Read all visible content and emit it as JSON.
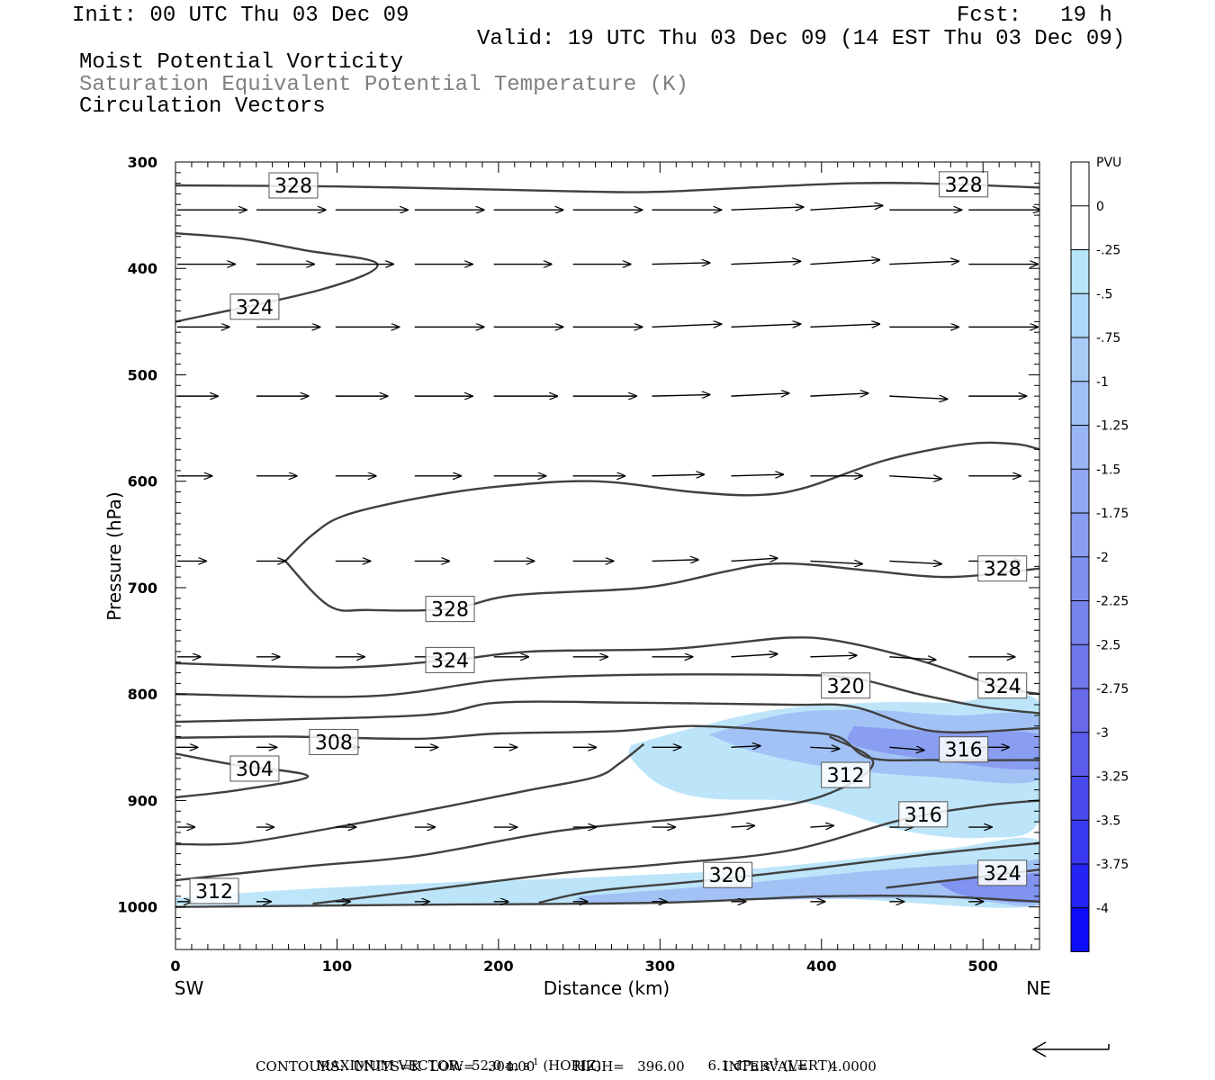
{
  "header": {
    "init": "Init: 00 UTC Thu 03 Dec 09",
    "fcst": "Fcst:   19 h",
    "valid": "Valid: 19 UTC Thu 03 Dec 09 (14 EST Thu 03 Dec 09)",
    "field1": "Moist Potential Vorticity",
    "field2": "Saturation Equivalent Potential Temperature (K)",
    "field3": "Circulation Vectors"
  },
  "footer": {
    "max_vector_label": "MAXIMUM VECTOR:",
    "max_horiz": "52.0 m s",
    "horiz_tag": "(HORIZ)",
    "max_vert": "6.1 dPa s",
    "vert_tag": "(VERT)",
    "exp": "-1",
    "contours": "CONTOURS:  UNITS=K  LOW=   304.00         HIGH=   396.00         INTERVAL=     4.0000"
  },
  "colors": {
    "contour": "#404040",
    "vector": "#000000",
    "pv_light": "#b4e4fa",
    "pv_dark": "#0000ff"
  },
  "chart_data": {
    "type": "contour",
    "title": "",
    "xlabel": "Distance (km)",
    "ylabel": "Pressure (hPa)",
    "xlim": [
      0,
      535
    ],
    "ylim": [
      1040,
      300
    ],
    "xticks": [
      0,
      100,
      200,
      300,
      400,
      500
    ],
    "yticks": [
      300,
      400,
      500,
      600,
      700,
      800,
      900,
      1000
    ],
    "x_endpoints": {
      "left": "SW",
      "right": "NE"
    },
    "colorbar": {
      "unit": "PVU",
      "labels": [
        "0",
        "-.25",
        "-.5",
        "-.75",
        "-1",
        "-1.25",
        "-1.5",
        "-1.75",
        "-2",
        "-2.25",
        "-2.5",
        "-2.75",
        "-3",
        "-3.25",
        "-3.5",
        "-3.75",
        "-4"
      ],
      "colors": [
        "#ffffff",
        "#ffffff",
        "#b8e4f9",
        "#b0d8f8",
        "#a8ccf6",
        "#a0c0f5",
        "#98b4f3",
        "#90a8f2",
        "#889cf0",
        "#8090ef",
        "#7884ed",
        "#7078ec",
        "#686ae9",
        "#5c5ceb",
        "#4a4aee",
        "#3838f1",
        "#2424f5",
        "#0c0cfa"
      ]
    },
    "contour_labels": [
      {
        "value": "328",
        "x": 73,
        "p": 322
      },
      {
        "value": "328",
        "x": 488,
        "p": 321
      },
      {
        "value": "324",
        "x": 49,
        "p": 436
      },
      {
        "value": "328",
        "x": 170,
        "p": 720
      },
      {
        "value": "328",
        "x": 512,
        "p": 682
      },
      {
        "value": "324",
        "x": 170,
        "p": 768
      },
      {
        "value": "320",
        "x": 415,
        "p": 792
      },
      {
        "value": "324",
        "x": 512,
        "p": 792
      },
      {
        "value": "308",
        "x": 98,
        "p": 845
      },
      {
        "value": "304",
        "x": 49,
        "p": 870
      },
      {
        "value": "312",
        "x": 415,
        "p": 876
      },
      {
        "value": "316",
        "x": 488,
        "p": 852
      },
      {
        "value": "316",
        "x": 463,
        "p": 913
      },
      {
        "value": "312",
        "x": 24,
        "p": 985
      },
      {
        "value": "320",
        "x": 342,
        "p": 970
      },
      {
        "value": "324",
        "x": 512,
        "p": 968
      }
    ],
    "contours": [
      {
        "value": 328,
        "points": [
          [
            0,
            322
          ],
          [
            100,
            323
          ],
          [
            200,
            326
          ],
          [
            260,
            328
          ],
          [
            300,
            328
          ],
          [
            370,
            323
          ],
          [
            420,
            320
          ],
          [
            460,
            320
          ],
          [
            535,
            324
          ]
        ]
      },
      {
        "value": 324,
        "points": [
          [
            0,
            367
          ],
          [
            40,
            372
          ],
          [
            80,
            383
          ],
          [
            125,
            396
          ],
          [
            90,
            420
          ],
          [
            0,
            450
          ]
        ]
      },
      {
        "value": 328,
        "points": [
          [
            68,
            675
          ],
          [
            85,
            650
          ],
          [
            105,
            632
          ],
          [
            150,
            616
          ],
          [
            200,
            605
          ],
          [
            260,
            600
          ],
          [
            320,
            610
          ],
          [
            360,
            613
          ],
          [
            390,
            606
          ],
          [
            440,
            580
          ],
          [
            490,
            565
          ],
          [
            520,
            565
          ],
          [
            535,
            570
          ]
        ]
      },
      {
        "value": 328,
        "points": [
          [
            68,
            675
          ],
          [
            95,
            717
          ],
          [
            120,
            721
          ],
          [
            170,
            720
          ],
          [
            210,
            707
          ],
          [
            290,
            700
          ],
          [
            340,
            685
          ],
          [
            365,
            678
          ],
          [
            390,
            678
          ],
          [
            430,
            684
          ],
          [
            480,
            690
          ],
          [
            535,
            682
          ]
        ]
      },
      {
        "value": 324,
        "points": [
          [
            0,
            771
          ],
          [
            100,
            775
          ],
          [
            170,
            768
          ],
          [
            220,
            760
          ],
          [
            300,
            758
          ],
          [
            340,
            753
          ],
          [
            380,
            747
          ],
          [
            410,
            750
          ],
          [
            460,
            768
          ],
          [
            510,
            793
          ],
          [
            535,
            800
          ]
        ]
      },
      {
        "value": 320,
        "points": [
          [
            0,
            800
          ],
          [
            120,
            802
          ],
          [
            200,
            787
          ],
          [
            280,
            782
          ],
          [
            380,
            782
          ],
          [
            420,
            785
          ],
          [
            460,
            800
          ],
          [
            500,
            812
          ],
          [
            535,
            818
          ]
        ]
      },
      {
        "value": 316,
        "points": [
          [
            0,
            826
          ],
          [
            150,
            820
          ],
          [
            200,
            808
          ],
          [
            280,
            808
          ],
          [
            380,
            810
          ],
          [
            420,
            812
          ],
          [
            470,
            835
          ],
          [
            535,
            832
          ]
        ]
      },
      {
        "value": 312,
        "points": [
          [
            0,
            841
          ],
          [
            70,
            840
          ],
          [
            150,
            842
          ],
          [
            200,
            837
          ],
          [
            270,
            835
          ],
          [
            320,
            830
          ],
          [
            380,
            835
          ],
          [
            410,
            840
          ],
          [
            430,
            860
          ],
          [
            470,
            862
          ],
          [
            535,
            862
          ]
        ]
      },
      {
        "value": 304,
        "points": [
          [
            0,
            856
          ],
          [
            35,
            866
          ],
          [
            82,
            877
          ],
          [
            40,
            890
          ],
          [
            0,
            897
          ]
        ]
      },
      {
        "value": 308,
        "points": [
          [
            0,
            941
          ],
          [
            40,
            940
          ],
          [
            100,
            925
          ],
          [
            170,
            905
          ],
          [
            220,
            890
          ],
          [
            260,
            878
          ],
          [
            275,
            865
          ],
          [
            290,
            847
          ]
        ]
      },
      {
        "value": 312,
        "points": [
          [
            0,
            975
          ],
          [
            80,
            962
          ],
          [
            150,
            952
          ],
          [
            240,
            928
          ],
          [
            340,
            913
          ],
          [
            400,
            896
          ],
          [
            432,
            865
          ],
          [
            405,
            840
          ]
        ]
      },
      {
        "value": 316,
        "points": [
          [
            85,
            997
          ],
          [
            150,
            985
          ],
          [
            240,
            968
          ],
          [
            300,
            960
          ],
          [
            380,
            947
          ],
          [
            450,
            918
          ],
          [
            500,
            905
          ],
          [
            535,
            900
          ]
        ]
      },
      {
        "value": 320,
        "points": [
          [
            225,
            996
          ],
          [
            260,
            985
          ],
          [
            330,
            975
          ],
          [
            400,
            963
          ],
          [
            470,
            950
          ],
          [
            535,
            940
          ]
        ]
      },
      {
        "value": 324,
        "points": [
          [
            440,
            982
          ],
          [
            480,
            975
          ],
          [
            535,
            965
          ]
        ]
      },
      {
        "value": 1000,
        "points": [
          [
            0,
            1000
          ],
          [
            150,
            998
          ],
          [
            300,
            996
          ],
          [
            400,
            990
          ],
          [
            470,
            990
          ],
          [
            535,
            995
          ]
        ]
      }
    ],
    "shading": [
      {
        "level": -0.25,
        "points": [
          [
            282,
            848
          ],
          [
            320,
            832
          ],
          [
            370,
            815
          ],
          [
            430,
            808
          ],
          [
            480,
            808
          ],
          [
            535,
            808
          ],
          [
            535,
            918
          ],
          [
            500,
            935
          ],
          [
            450,
            928
          ],
          [
            390,
            902
          ],
          [
            330,
            898
          ],
          [
            300,
            885
          ],
          [
            282,
            860
          ]
        ]
      },
      {
        "level": -1.0,
        "points": [
          [
            330,
            838
          ],
          [
            380,
            818
          ],
          [
            430,
            815
          ],
          [
            480,
            820
          ],
          [
            535,
            822
          ],
          [
            535,
            880
          ],
          [
            470,
            878
          ],
          [
            410,
            870
          ],
          [
            360,
            855
          ]
        ]
      },
      {
        "level": -1.75,
        "points": [
          [
            420,
            830
          ],
          [
            470,
            835
          ],
          [
            535,
            838
          ],
          [
            535,
            870
          ],
          [
            470,
            862
          ],
          [
            420,
            848
          ]
        ]
      },
      {
        "level": -0.25,
        "points": [
          [
            0,
            992
          ],
          [
            60,
            985
          ],
          [
            150,
            978
          ],
          [
            260,
            972
          ],
          [
            350,
            965
          ],
          [
            420,
            955
          ],
          [
            480,
            945
          ],
          [
            535,
            938
          ],
          [
            535,
            998
          ],
          [
            400,
            992
          ],
          [
            250,
            998
          ],
          [
            0,
            998
          ]
        ]
      },
      {
        "level": -1.0,
        "points": [
          [
            250,
            990
          ],
          [
            350,
            978
          ],
          [
            440,
            965
          ],
          [
            520,
            958
          ],
          [
            535,
            958
          ],
          [
            535,
            998
          ],
          [
            480,
            992
          ],
          [
            380,
            993
          ],
          [
            260,
            997
          ]
        ]
      },
      {
        "level": -2.0,
        "points": [
          [
            470,
            975
          ],
          [
            520,
            970
          ],
          [
            535,
            970
          ],
          [
            535,
            995
          ],
          [
            490,
            990
          ]
        ]
      }
    ],
    "vectors": {
      "x": [
        0,
        49,
        98,
        147,
        196,
        245,
        294,
        343,
        392,
        441,
        490
      ],
      "rows": [
        {
          "p": 345,
          "u": [
            48,
            48,
            50,
            48,
            48,
            48,
            48,
            50,
            50,
            50,
            50
          ],
          "w": [
            0,
            0,
            0,
            0,
            0,
            0,
            0,
            -2,
            -3,
            0,
            0
          ]
        },
        {
          "p": 396,
          "u": [
            40,
            40,
            40,
            40,
            40,
            40,
            40,
            48,
            48,
            48,
            48
          ],
          "w": [
            0,
            0,
            0,
            0,
            0,
            0,
            -1,
            -2,
            -3,
            -2,
            0
          ]
        },
        {
          "p": 455,
          "u": [
            36,
            44,
            44,
            48,
            48,
            48,
            48,
            48,
            48,
            48,
            48
          ],
          "w": [
            0,
            0,
            0,
            0,
            0,
            0,
            -2,
            -2,
            -2,
            0,
            0
          ]
        },
        {
          "p": 520,
          "u": [
            28,
            36,
            36,
            40,
            44,
            44,
            40,
            40,
            40,
            40,
            40
          ],
          "w": [
            0,
            0,
            0,
            0,
            0,
            0,
            -1,
            -2,
            -2,
            2,
            0
          ]
        },
        {
          "p": 595,
          "u": [
            24,
            28,
            28,
            32,
            36,
            36,
            36,
            36,
            36,
            36,
            36
          ],
          "w": [
            0,
            0,
            0,
            0,
            0,
            0,
            -1,
            -1,
            0,
            2,
            0
          ]
        },
        {
          "p": 675,
          "u": [
            20,
            20,
            24,
            24,
            28,
            28,
            32,
            32,
            36,
            36,
            36
          ],
          "w": [
            0,
            0,
            0,
            0,
            0,
            0,
            -1,
            -2,
            2,
            2,
            0
          ]
        },
        {
          "p": 765,
          "u": [
            16,
            16,
            20,
            20,
            24,
            24,
            28,
            32,
            32,
            32,
            32
          ],
          "w": [
            0,
            0,
            0,
            0,
            0,
            0,
            0,
            -2,
            -1,
            2,
            0
          ]
        },
        {
          "p": 850,
          "u": [
            14,
            14,
            16,
            16,
            16,
            16,
            20,
            20,
            20,
            24,
            28
          ],
          "w": [
            0,
            0,
            0,
            0,
            0,
            0,
            0,
            -1,
            1,
            2,
            0
          ]
        },
        {
          "p": 925,
          "u": [
            12,
            12,
            14,
            14,
            16,
            16,
            16,
            16,
            16,
            16,
            16
          ],
          "w": [
            0,
            0,
            0,
            0,
            0,
            0,
            0,
            -1,
            -1,
            0,
            0
          ]
        },
        {
          "p": 995,
          "u": [
            10,
            10,
            10,
            10,
            10,
            10,
            10,
            10,
            10,
            10,
            10
          ],
          "w": [
            0,
            0,
            0,
            0,
            0,
            0,
            0,
            0,
            0,
            0,
            0
          ]
        }
      ]
    }
  }
}
